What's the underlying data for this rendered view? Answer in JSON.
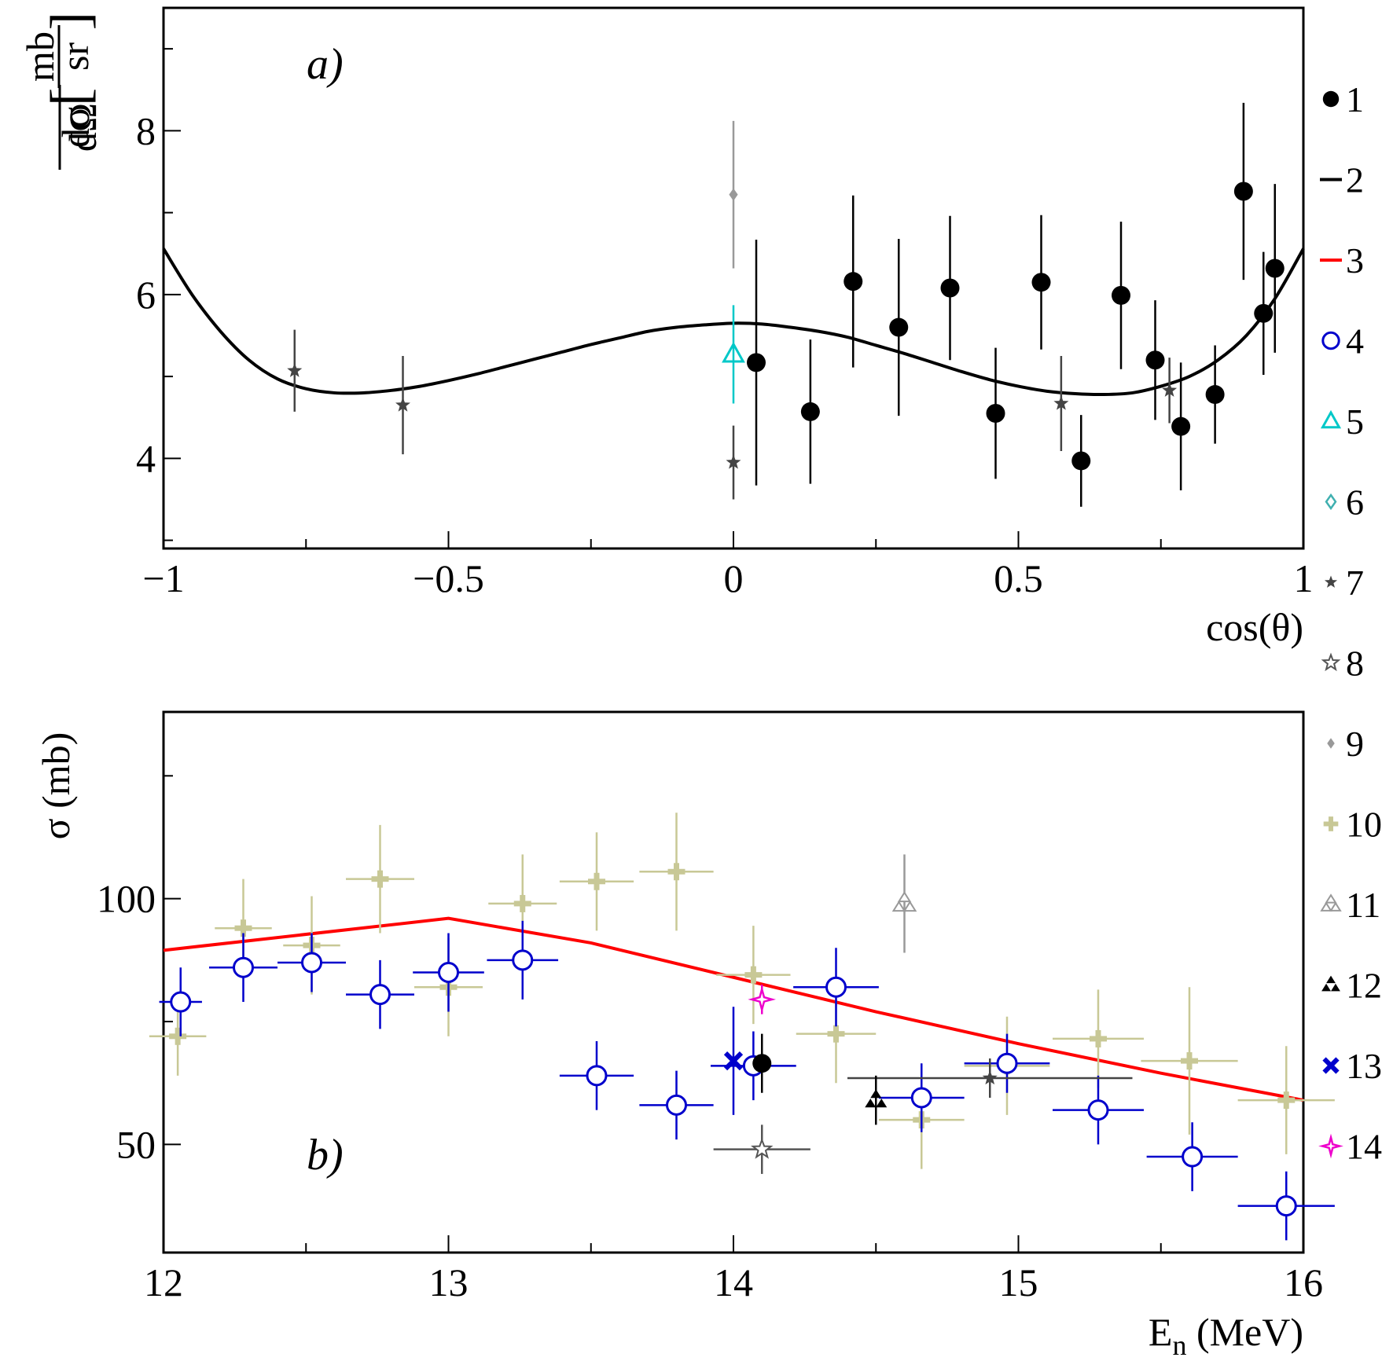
{
  "chart_data": [
    {
      "panel": "a)",
      "type": "scatter",
      "xlabel": "cos(θ)",
      "ylabel": "",
      "xlim": [
        -1,
        1
      ],
      "ylim": [
        2.9,
        9.5
      ],
      "xticks": [
        -1,
        -0.5,
        0,
        0.5,
        1
      ],
      "xtick_labels": [
        "−1",
        "−0.5",
        "0",
        "0.5",
        "1"
      ],
      "yticks": [
        4,
        6,
        8
      ],
      "ytick_labels": [
        "4",
        "6",
        "8"
      ],
      "grid": false,
      "curve": {
        "name": "2",
        "color": "#000000",
        "x": [
          -1,
          -0.95,
          -0.9,
          -0.85,
          -0.8,
          -0.75,
          -0.7,
          -0.65,
          -0.6,
          -0.55,
          -0.5,
          -0.45,
          -0.4,
          -0.35,
          -0.3,
          -0.25,
          -0.2,
          -0.15,
          -0.1,
          -0.05,
          0,
          0.05,
          0.1,
          0.15,
          0.2,
          0.25,
          0.3,
          0.35,
          0.4,
          0.45,
          0.5,
          0.55,
          0.6,
          0.65,
          0.7,
          0.75,
          0.8,
          0.85,
          0.9,
          0.95,
          1
        ],
        "y": [
          6.56,
          6.0,
          5.55,
          5.2,
          4.97,
          4.85,
          4.8,
          4.8,
          4.83,
          4.88,
          4.95,
          5.03,
          5.12,
          5.21,
          5.3,
          5.39,
          5.47,
          5.55,
          5.6,
          5.63,
          5.65,
          5.64,
          5.6,
          5.55,
          5.48,
          5.38,
          5.28,
          5.17,
          5.06,
          4.96,
          4.88,
          4.82,
          4.79,
          4.78,
          4.8,
          4.88,
          5.0,
          5.2,
          5.5,
          5.95,
          6.56
        ]
      },
      "series": [
        {
          "name": "1",
          "marker": "filled-circle",
          "color": "#000000",
          "points": [
            {
              "x": 0.04,
              "y": 5.17,
              "yerr": 1.5
            },
            {
              "x": 0.135,
              "y": 4.57,
              "yerr": 0.88
            },
            {
              "x": 0.21,
              "y": 6.16,
              "yerr": 1.05
            },
            {
              "x": 0.29,
              "y": 5.6,
              "yerr": 1.08
            },
            {
              "x": 0.38,
              "y": 6.08,
              "yerr": 0.88
            },
            {
              "x": 0.46,
              "y": 4.55,
              "yerr": 0.8
            },
            {
              "x": 0.54,
              "y": 6.15,
              "yerr": 0.82
            },
            {
              "x": 0.61,
              "y": 3.97,
              "yerr": 0.56
            },
            {
              "x": 0.68,
              "y": 5.99,
              "yerr": 0.9
            },
            {
              "x": 0.74,
              "y": 5.2,
              "yerr": 0.73
            },
            {
              "x": 0.785,
              "y": 4.39,
              "yerr": 0.78
            },
            {
              "x": 0.845,
              "y": 4.78,
              "yerr": 0.6
            },
            {
              "x": 0.895,
              "y": 7.26,
              "yerr": 1.08
            },
            {
              "x": 0.93,
              "y": 5.77,
              "yerr": 0.75
            },
            {
              "x": 0.95,
              "y": 6.32,
              "yerr": 1.03
            }
          ]
        },
        {
          "name": "5",
          "marker": "open-triangle",
          "color": "#00c8c8",
          "points": [
            {
              "x": 0.0,
              "y": 5.27,
              "yerr": 0.6
            }
          ]
        },
        {
          "name": "7",
          "marker": "small-star",
          "color": "#444444",
          "points": [
            {
              "x": -0.77,
              "y": 5.07,
              "yerr": 0.5
            },
            {
              "x": -0.58,
              "y": 4.65,
              "yerr": 0.6
            },
            {
              "x": 0.0,
              "y": 3.95,
              "yerr": 0.45
            },
            {
              "x": 0.575,
              "y": 4.67,
              "yerr": 0.58
            },
            {
              "x": 0.765,
              "y": 4.83,
              "yerr": 0.4
            }
          ]
        },
        {
          "name": "9",
          "marker": "small-diamond",
          "color": "#999999",
          "points": [
            {
              "x": 0.0,
              "y": 7.22,
              "yerr": 0.9
            }
          ]
        }
      ]
    },
    {
      "panel": "b)",
      "type": "scatter",
      "xlabel": "E",
      "xlabel_sub": "n",
      "xlabel_unit": " (MeV)",
      "ylabel": "σ (mb)",
      "xlim": [
        12,
        16
      ],
      "ylim": [
        28,
        138
      ],
      "xticks": [
        12,
        13,
        14,
        15,
        16
      ],
      "xtick_labels": [
        "12",
        "13",
        "14",
        "15",
        "16"
      ],
      "yticks": [
        50,
        100
      ],
      "ytick_labels": [
        "50",
        "100"
      ],
      "grid": false,
      "curve": {
        "name": "3",
        "color": "#ff0000",
        "x": [
          12,
          13,
          13.5,
          14,
          14.5,
          15,
          15.5,
          16
        ],
        "y": [
          89.5,
          96,
          91,
          84,
          77,
          70.5,
          64.5,
          59
        ]
      },
      "series": [
        {
          "name": "4",
          "marker": "open-circle",
          "color": "#0000cc",
          "points": [
            {
              "x": 12.06,
              "y": 79,
              "xerr": 0.075,
              "yerr": 7
            },
            {
              "x": 12.28,
              "y": 86,
              "xerr": 0.12,
              "yerr": 7
            },
            {
              "x": 12.52,
              "y": 87,
              "xerr": 0.12,
              "yerr": 6
            },
            {
              "x": 12.76,
              "y": 80.5,
              "xerr": 0.12,
              "yerr": 7
            },
            {
              "x": 13.0,
              "y": 85,
              "xerr": 0.125,
              "yerr": 8
            },
            {
              "x": 13.26,
              "y": 87.5,
              "xerr": 0.125,
              "yerr": 8
            },
            {
              "x": 13.52,
              "y": 64,
              "xerr": 0.13,
              "yerr": 7
            },
            {
              "x": 13.8,
              "y": 58,
              "xerr": 0.13,
              "yerr": 7
            },
            {
              "x": 14.07,
              "y": 66,
              "xerr": 0.15,
              "yerr": 7
            },
            {
              "x": 14.36,
              "y": 82,
              "xerr": 0.15,
              "yerr": 8
            },
            {
              "x": 14.66,
              "y": 59.5,
              "xerr": 0.15,
              "yerr": 7
            },
            {
              "x": 14.96,
              "y": 66.5,
              "xerr": 0.15,
              "yerr": 6
            },
            {
              "x": 15.28,
              "y": 57,
              "xerr": 0.16,
              "yerr": 7
            },
            {
              "x": 15.61,
              "y": 47.5,
              "xerr": 0.16,
              "yerr": 7
            },
            {
              "x": 15.94,
              "y": 37.5,
              "xerr": 0.17,
              "yerr": 7
            }
          ]
        },
        {
          "name": "10",
          "marker": "plus",
          "color": "#c8c896",
          "points": [
            {
              "x": 12.05,
              "y": 72,
              "xerr": 0.1,
              "yerr": 8
            },
            {
              "x": 12.28,
              "y": 94,
              "xerr": 0.1,
              "yerr": 10
            },
            {
              "x": 12.52,
              "y": 90.5,
              "xerr": 0.1,
              "yerr": 10
            },
            {
              "x": 12.76,
              "y": 104,
              "xerr": 0.12,
              "yerr": 11
            },
            {
              "x": 13.0,
              "y": 82,
              "xerr": 0.12,
              "yerr": 10
            },
            {
              "x": 13.26,
              "y": 99,
              "xerr": 0.12,
              "yerr": 10
            },
            {
              "x": 13.52,
              "y": 103.5,
              "xerr": 0.13,
              "yerr": 10
            },
            {
              "x": 13.8,
              "y": 105.5,
              "xerr": 0.13,
              "yerr": 12
            },
            {
              "x": 14.07,
              "y": 84.5,
              "xerr": 0.13,
              "yerr": 10
            },
            {
              "x": 14.36,
              "y": 72.5,
              "xerr": 0.14,
              "yerr": 10
            },
            {
              "x": 14.66,
              "y": 55,
              "xerr": 0.15,
              "yerr": 10
            },
            {
              "x": 14.96,
              "y": 66,
              "xerr": 0.15,
              "yerr": 10
            },
            {
              "x": 15.28,
              "y": 71.5,
              "xerr": 0.16,
              "yerr": 10
            },
            {
              "x": 15.6,
              "y": 67,
              "xerr": 0.17,
              "yerr": 15
            },
            {
              "x": 15.94,
              "y": 59,
              "xerr": 0.17,
              "yerr": 11
            }
          ]
        },
        {
          "name": "1",
          "marker": "filled-circle",
          "color": "#000000",
          "points": [
            {
              "x": 14.1,
              "y": 66.5,
              "xerr": 0,
              "yerr": 6
            }
          ]
        },
        {
          "name": "7",
          "marker": "small-star",
          "color": "#444444",
          "points": [
            {
              "x": 14.9,
              "y": 63.5,
              "xerr": 0.5,
              "yerr": 4
            }
          ]
        },
        {
          "name": "8",
          "marker": "open-star",
          "color": "#555555",
          "points": [
            {
              "x": 14.1,
              "y": 49,
              "xerr": 0.17,
              "yerr": 5
            }
          ]
        },
        {
          "name": "11",
          "marker": "open-trefoil",
          "color": "#999999",
          "points": [
            {
              "x": 14.6,
              "y": 99,
              "xerr": 0,
              "yerr": 10
            }
          ]
        },
        {
          "name": "12",
          "marker": "filled-trefoil",
          "color": "#000000",
          "points": [
            {
              "x": 14.5,
              "y": 59,
              "xerr": 0,
              "yerr": 5
            }
          ]
        },
        {
          "name": "13",
          "marker": "cross-x",
          "color": "#0000cc",
          "points": [
            {
              "x": 14.0,
              "y": 67,
              "xerr": 0,
              "yerr": 11
            }
          ]
        },
        {
          "name": "14",
          "marker": "open-4star",
          "color": "#ee00cc",
          "points": [
            {
              "x": 14.1,
              "y": 79.5,
              "xerr": 0,
              "yerr": 3
            }
          ]
        }
      ]
    }
  ],
  "ylabel_a_parts": {
    "num": "dσ",
    "den": "dΩ",
    "unit_num": "mb",
    "unit_den": "sr"
  },
  "legend": [
    {
      "label": "1",
      "marker": "filled-circle",
      "color": "#000000"
    },
    {
      "label": "2",
      "marker": "line",
      "color": "#000000"
    },
    {
      "label": "3",
      "marker": "line",
      "color": "#ff0000"
    },
    {
      "label": "4",
      "marker": "open-circle",
      "color": "#0000cc"
    },
    {
      "label": "5",
      "marker": "open-triangle",
      "color": "#00c8c8"
    },
    {
      "label": "6",
      "marker": "open-diamond",
      "color": "#40b0b0"
    },
    {
      "label": "7",
      "marker": "small-star",
      "color": "#444444"
    },
    {
      "label": "8",
      "marker": "open-star",
      "color": "#555555"
    },
    {
      "label": "9",
      "marker": "small-diamond",
      "color": "#999999"
    },
    {
      "label": "10",
      "marker": "plus",
      "color": "#c8c896"
    },
    {
      "label": "11",
      "marker": "open-trefoil",
      "color": "#999999"
    },
    {
      "label": "12",
      "marker": "filled-trefoil",
      "color": "#000000"
    },
    {
      "label": "13",
      "marker": "cross-x",
      "color": "#0000cc"
    },
    {
      "label": "14",
      "marker": "open-4star",
      "color": "#ee00cc"
    }
  ]
}
